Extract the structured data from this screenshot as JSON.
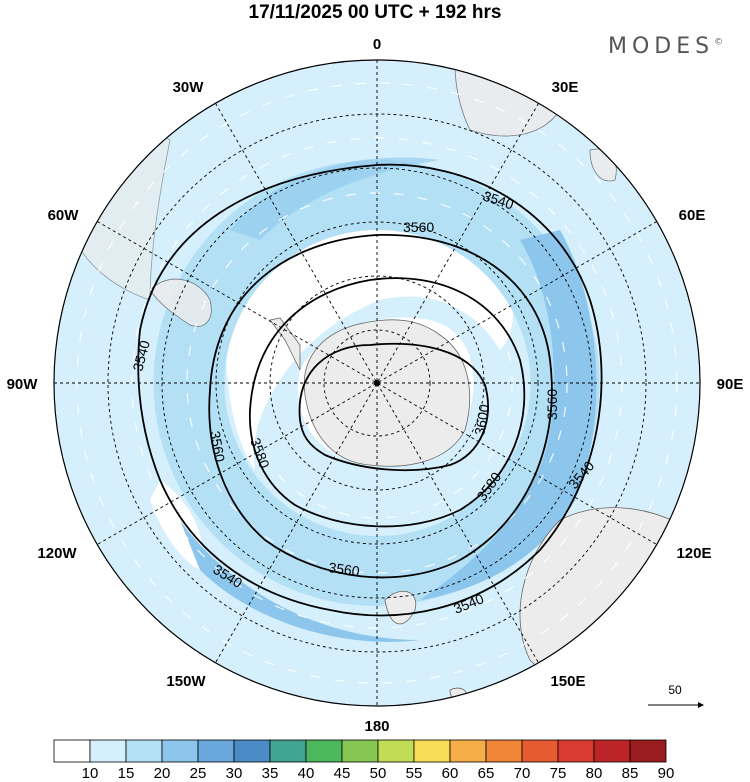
{
  "title": "17/11/2025  00 UTC  + 192 hrs",
  "brand": "MODES",
  "brand_mark": "©",
  "longitude_labels": [
    "0",
    "30E",
    "60E",
    "90E",
    "120E",
    "150E",
    "180",
    "150W",
    "120W",
    "90W",
    "60W",
    "30W"
  ],
  "contours": [
    {
      "label": "3540",
      "color": "#000000"
    },
    {
      "label": "3560",
      "color": "#000000"
    },
    {
      "label": "3580",
      "color": "#000000"
    },
    {
      "label": "3600",
      "color": "#000000"
    }
  ],
  "wind_reference": {
    "value": "50"
  },
  "colorbar": {
    "labels": [
      "10",
      "15",
      "20",
      "25",
      "30",
      "35",
      "40",
      "45",
      "50",
      "55",
      "60",
      "65",
      "70",
      "75",
      "80",
      "85",
      "90"
    ],
    "colors": [
      "#ffffff",
      "#d5f0fc",
      "#b3e0f5",
      "#8cc6ec",
      "#69a7dc",
      "#4b8cc6",
      "#41a493",
      "#4cb85d",
      "#86c653",
      "#c2dc55",
      "#f8dc56",
      "#f6ae48",
      "#f08537",
      "#e75b30",
      "#d93b2e",
      "#bd2428",
      "#9a1c1f"
    ]
  },
  "icons": [
    "polar-map-icon",
    "wind-arrow-icon"
  ]
}
